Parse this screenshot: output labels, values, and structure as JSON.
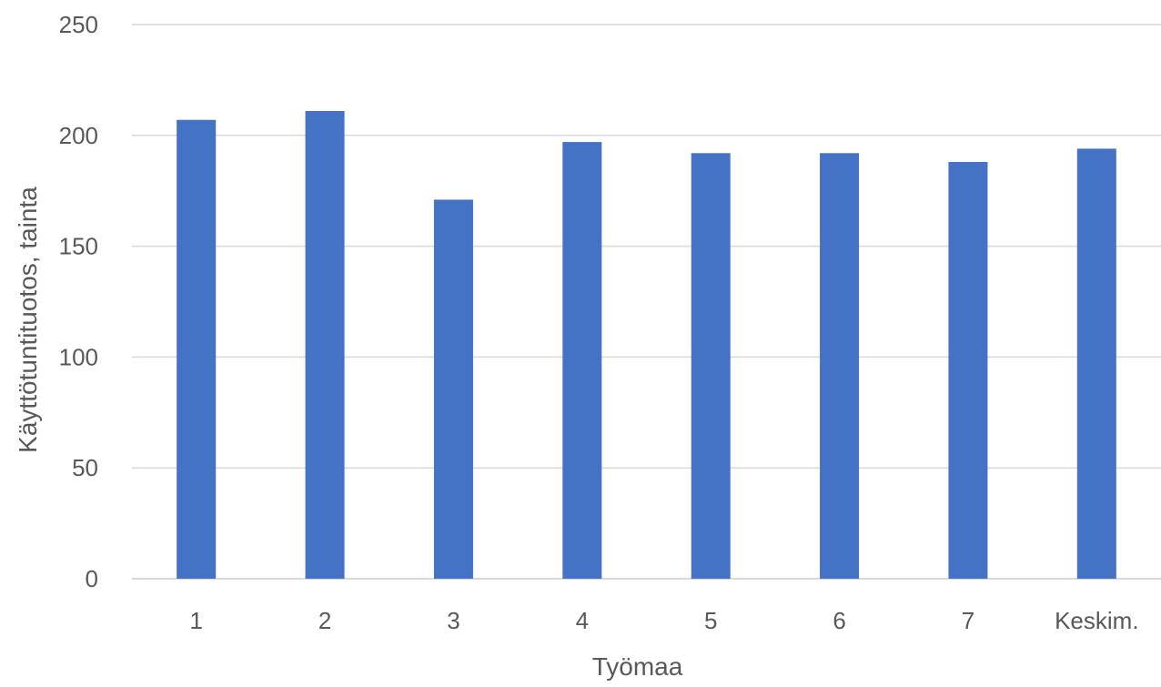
{
  "chart_data": {
    "type": "bar",
    "categories": [
      "1",
      "2",
      "3",
      "4",
      "5",
      "6",
      "7",
      "Keskim."
    ],
    "series": [
      {
        "values": [
          207,
          211,
          171,
          197,
          192,
          192,
          188,
          194
        ]
      }
    ],
    "xlabel": "Työmaa",
    "ylabel": "Käyttötuntituotos, tainta",
    "ylim": [
      0,
      250
    ],
    "yticks": [
      0,
      50,
      100,
      150,
      200,
      250
    ],
    "grid": true,
    "legend": "none",
    "colors": {
      "bar": "#4472C4",
      "grid": "#D9D9D9",
      "text": "#595959"
    }
  }
}
